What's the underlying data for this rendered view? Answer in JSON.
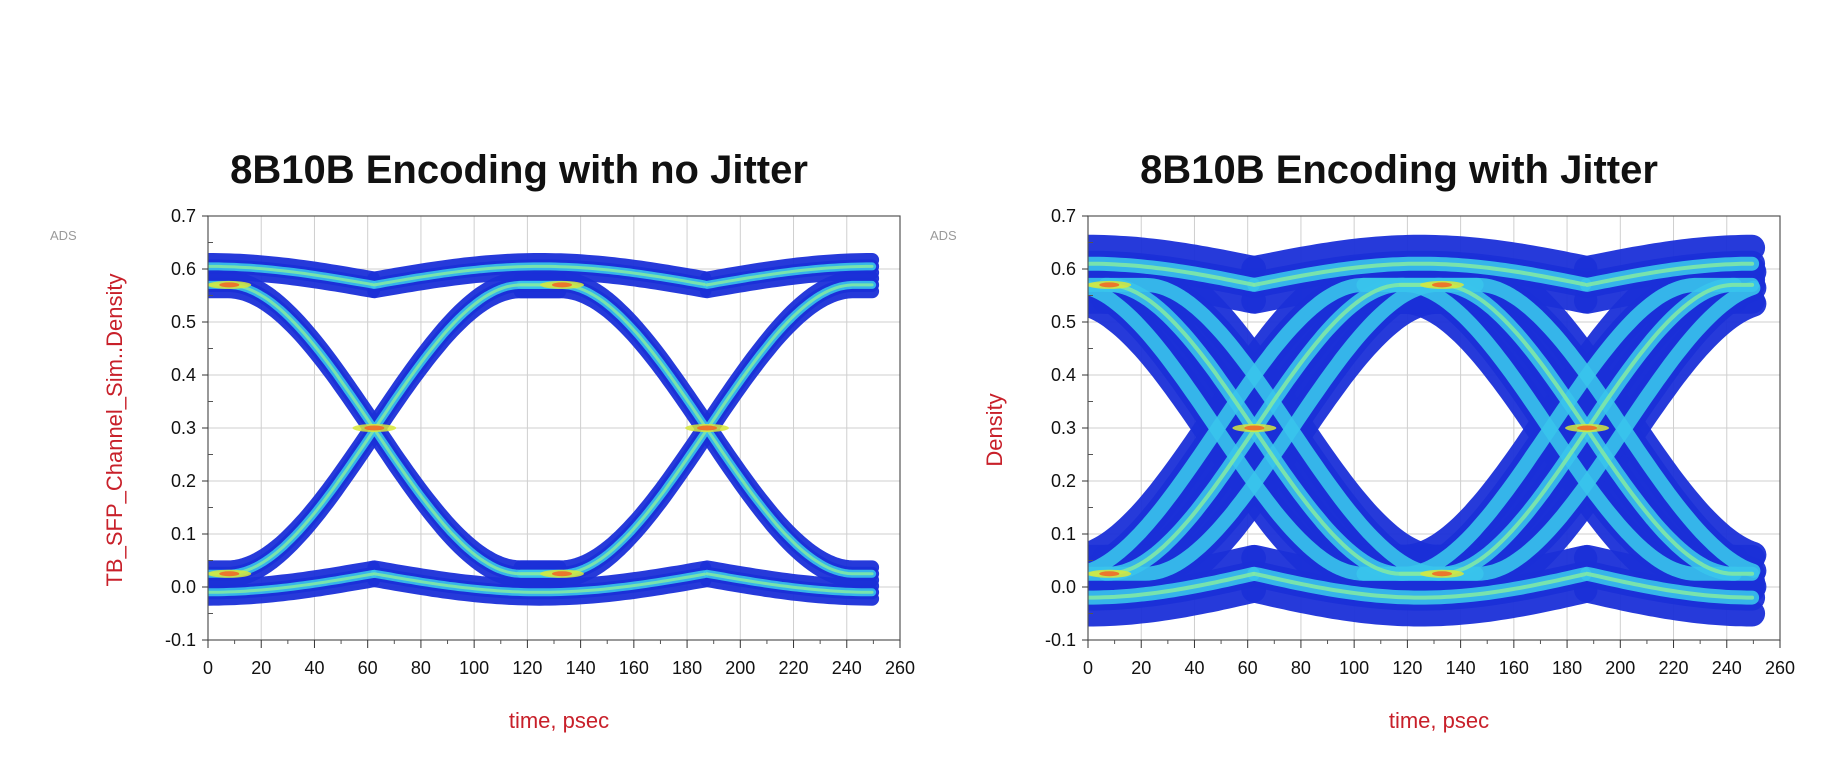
{
  "chart_data": [
    {
      "type": "scatter",
      "variant": "eye-diagram-density",
      "title": "8B10B Encoding with no Jitter",
      "xlabel": "time, psec",
      "ylabel": "TB_SFP_Channel_Sim..Density",
      "brand": "ADS",
      "xlim": [
        0,
        260
      ],
      "ylim": [
        -0.1,
        0.7
      ],
      "xticks": [
        "0",
        "20",
        "40",
        "60",
        "80",
        "100",
        "120",
        "140",
        "160",
        "180",
        "200",
        "220",
        "240",
        "260"
      ],
      "yticks": [
        "-0.1",
        "0.0",
        "0.1",
        "0.2",
        "0.3",
        "0.4",
        "0.5",
        "0.6",
        "0.7"
      ],
      "grid": true,
      "unit_interval_ps": 125,
      "crossing_times_ps": [
        62.5,
        187.5
      ],
      "data_end_ps": 250,
      "levels": {
        "high": 0.57,
        "low": 0.025,
        "crossing": 0.3,
        "overshoot_high": 0.605,
        "overshoot_low": -0.01
      },
      "trace_spread": 0.012,
      "time_jitter_ps": 0,
      "colors": {
        "outer_density": "#1a2fd8",
        "mid_density": "#39c4ec",
        "high_density": "#7fe8a6",
        "peak_density": "#d8e83a",
        "max_density": "#f06a28"
      }
    },
    {
      "type": "scatter",
      "variant": "eye-diagram-density",
      "title": "8B10B Encoding with Jitter",
      "xlabel": "time, psec",
      "ylabel": "Density",
      "brand": "ADS",
      "xlim": [
        0,
        260
      ],
      "ylim": [
        -0.1,
        0.7
      ],
      "xticks": [
        "0",
        "20",
        "40",
        "60",
        "80",
        "100",
        "120",
        "140",
        "160",
        "180",
        "200",
        "220",
        "240",
        "260"
      ],
      "yticks": [
        "-0.1",
        "0.0",
        "0.1",
        "0.2",
        "0.3",
        "0.4",
        "0.5",
        "0.6",
        "0.7"
      ],
      "grid": true,
      "unit_interval_ps": 125,
      "crossing_times_ps": [
        62.5,
        187.5
      ],
      "data_end_ps": 250,
      "levels": {
        "high": 0.57,
        "low": 0.025,
        "crossing": 0.3,
        "overshoot_high": 0.61,
        "overshoot_low": -0.02
      },
      "trace_spread": 0.03,
      "time_jitter_ps": 14,
      "colors": {
        "outer_density": "#1a2fd8",
        "mid_density": "#39c4ec",
        "high_density": "#7fe8a6",
        "peak_density": "#d8e83a",
        "max_density": "#f06a28"
      }
    }
  ]
}
